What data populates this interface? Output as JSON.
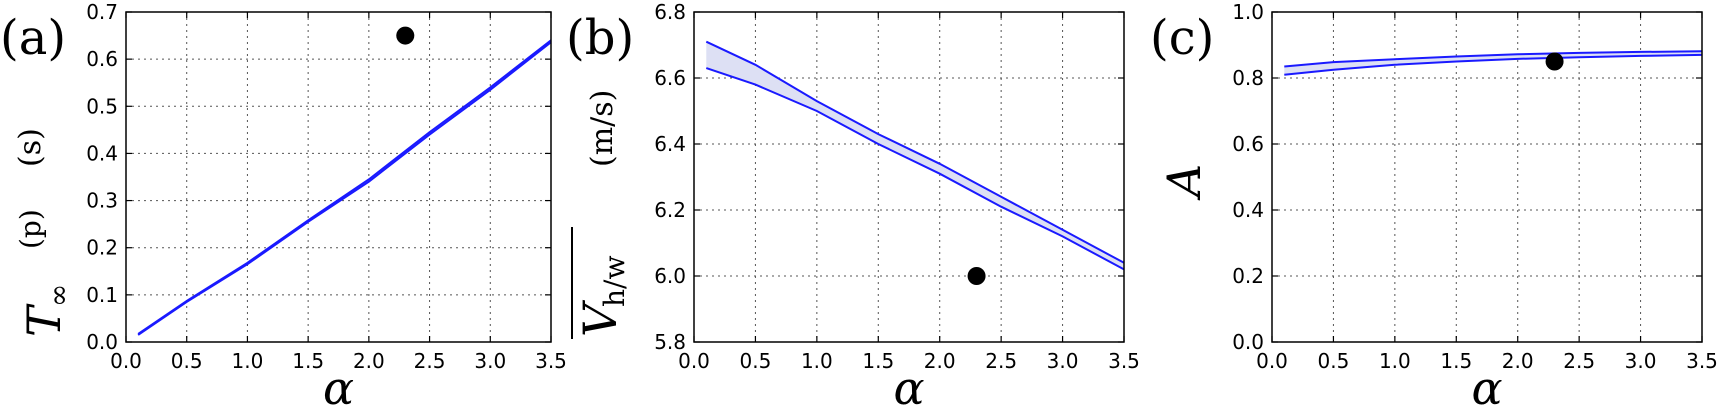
{
  "colors": {
    "line": "#1a1aff",
    "band": "#dde0f4",
    "marker": "#000000",
    "grid": "#555555"
  },
  "chart_data": [
    {
      "panel": "(a)",
      "type": "line",
      "ylabel": {
        "symbol": "T",
        "sub": "∞",
        "sup": "(p)",
        "unit": "(s)"
      },
      "xlabel": "α",
      "xlim": [
        0.0,
        3.5
      ],
      "ylim": [
        0.0,
        0.7
      ],
      "xticks": [
        "0.0",
        "0.5",
        "1.0",
        "1.5",
        "2.0",
        "2.5",
        "3.0",
        "3.5"
      ],
      "yticks": [
        "0.0",
        "0.1",
        "0.2",
        "0.3",
        "0.4",
        "0.5",
        "0.6",
        "0.7"
      ],
      "grid": true,
      "series": [
        {
          "x": [
            0.1,
            0.5,
            1.0,
            1.5,
            2.0,
            2.5,
            3.0,
            3.5
          ],
          "lower": [
            0.015,
            0.085,
            0.165,
            0.255,
            0.34,
            0.44,
            0.535,
            0.636
          ],
          "upper": [
            0.017,
            0.087,
            0.168,
            0.258,
            0.345,
            0.445,
            0.54,
            0.64
          ]
        }
      ],
      "point": {
        "x": 2.3,
        "y": 0.65
      }
    },
    {
      "panel": "(b)",
      "type": "line",
      "ylabel": {
        "symbol": "V",
        "sub": "h/w",
        "overline": true,
        "unit": "(m/s)"
      },
      "xlabel": "α",
      "xlim": [
        0.0,
        3.5
      ],
      "ylim": [
        5.8,
        6.8
      ],
      "xticks": [
        "0.0",
        "0.5",
        "1.0",
        "1.5",
        "2.0",
        "2.5",
        "3.0",
        "3.5"
      ],
      "yticks": [
        "5.8",
        "6.0",
        "6.2",
        "6.4",
        "6.6",
        "6.8"
      ],
      "grid": true,
      "series": [
        {
          "x": [
            0.1,
            0.5,
            1.0,
            1.5,
            2.0,
            2.5,
            3.0,
            3.5
          ],
          "lower": [
            6.63,
            6.58,
            6.5,
            6.4,
            6.31,
            6.21,
            6.12,
            6.02
          ],
          "upper": [
            6.71,
            6.64,
            6.53,
            6.43,
            6.34,
            6.24,
            6.14,
            6.04
          ]
        }
      ],
      "point": {
        "x": 2.3,
        "y": 6.0
      }
    },
    {
      "panel": "(c)",
      "type": "line",
      "ylabel": {
        "symbol": "A"
      },
      "xlabel": "α",
      "xlim": [
        0.0,
        3.5
      ],
      "ylim": [
        0.0,
        1.0
      ],
      "xticks": [
        "0.0",
        "0.5",
        "1.0",
        "1.5",
        "2.0",
        "2.5",
        "3.0",
        "3.5"
      ],
      "yticks": [
        "0.0",
        "0.2",
        "0.4",
        "0.6",
        "0.8",
        "1.0"
      ],
      "grid": true,
      "series": [
        {
          "x": [
            0.1,
            0.5,
            1.0,
            1.5,
            2.0,
            2.5,
            3.0,
            3.5
          ],
          "lower": [
            0.81,
            0.825,
            0.84,
            0.85,
            0.858,
            0.863,
            0.867,
            0.87
          ],
          "upper": [
            0.835,
            0.848,
            0.857,
            0.865,
            0.872,
            0.876,
            0.879,
            0.881
          ]
        }
      ],
      "point": {
        "x": 2.3,
        "y": 0.85
      }
    }
  ]
}
